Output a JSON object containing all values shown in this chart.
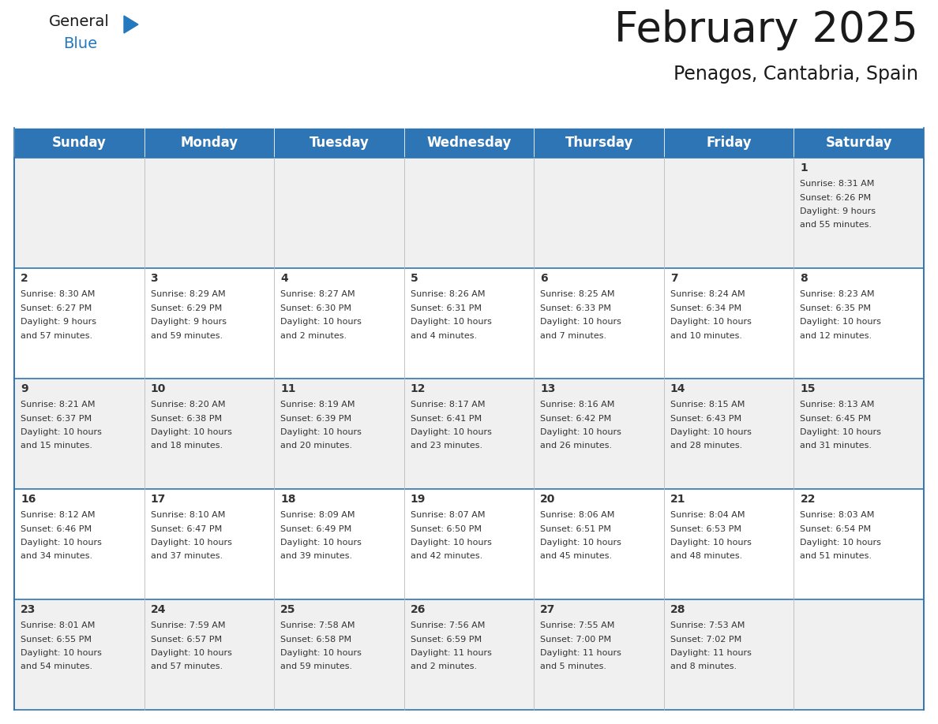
{
  "title": "February 2025",
  "subtitle": "Penagos, Cantabria, Spain",
  "header_color": "#2e75b6",
  "header_text_color": "#ffffff",
  "cell_bg_white": "#ffffff",
  "cell_bg_gray": "#f0f0f0",
  "border_color": "#2e75b6",
  "text_color": "#333333",
  "day_headers": [
    "Sunday",
    "Monday",
    "Tuesday",
    "Wednesday",
    "Thursday",
    "Friday",
    "Saturday"
  ],
  "title_fontsize": 38,
  "subtitle_fontsize": 17,
  "header_fontsize": 12,
  "day_num_fontsize": 10,
  "cell_fontsize": 8,
  "logo_color1": "#1a1a1a",
  "logo_color2": "#2479be",
  "logo_tri_color": "#2479be",
  "logo_dark_tri_color": "#1a5a8a",
  "weeks": [
    [
      {
        "day": null,
        "lines": []
      },
      {
        "day": null,
        "lines": []
      },
      {
        "day": null,
        "lines": []
      },
      {
        "day": null,
        "lines": []
      },
      {
        "day": null,
        "lines": []
      },
      {
        "day": null,
        "lines": []
      },
      {
        "day": 1,
        "lines": [
          "Sunrise: 8:31 AM",
          "Sunset: 6:26 PM",
          "Daylight: 9 hours",
          "and 55 minutes."
        ]
      }
    ],
    [
      {
        "day": 2,
        "lines": [
          "Sunrise: 8:30 AM",
          "Sunset: 6:27 PM",
          "Daylight: 9 hours",
          "and 57 minutes."
        ]
      },
      {
        "day": 3,
        "lines": [
          "Sunrise: 8:29 AM",
          "Sunset: 6:29 PM",
          "Daylight: 9 hours",
          "and 59 minutes."
        ]
      },
      {
        "day": 4,
        "lines": [
          "Sunrise: 8:27 AM",
          "Sunset: 6:30 PM",
          "Daylight: 10 hours",
          "and 2 minutes."
        ]
      },
      {
        "day": 5,
        "lines": [
          "Sunrise: 8:26 AM",
          "Sunset: 6:31 PM",
          "Daylight: 10 hours",
          "and 4 minutes."
        ]
      },
      {
        "day": 6,
        "lines": [
          "Sunrise: 8:25 AM",
          "Sunset: 6:33 PM",
          "Daylight: 10 hours",
          "and 7 minutes."
        ]
      },
      {
        "day": 7,
        "lines": [
          "Sunrise: 8:24 AM",
          "Sunset: 6:34 PM",
          "Daylight: 10 hours",
          "and 10 minutes."
        ]
      },
      {
        "day": 8,
        "lines": [
          "Sunrise: 8:23 AM",
          "Sunset: 6:35 PM",
          "Daylight: 10 hours",
          "and 12 minutes."
        ]
      }
    ],
    [
      {
        "day": 9,
        "lines": [
          "Sunrise: 8:21 AM",
          "Sunset: 6:37 PM",
          "Daylight: 10 hours",
          "and 15 minutes."
        ]
      },
      {
        "day": 10,
        "lines": [
          "Sunrise: 8:20 AM",
          "Sunset: 6:38 PM",
          "Daylight: 10 hours",
          "and 18 minutes."
        ]
      },
      {
        "day": 11,
        "lines": [
          "Sunrise: 8:19 AM",
          "Sunset: 6:39 PM",
          "Daylight: 10 hours",
          "and 20 minutes."
        ]
      },
      {
        "day": 12,
        "lines": [
          "Sunrise: 8:17 AM",
          "Sunset: 6:41 PM",
          "Daylight: 10 hours",
          "and 23 minutes."
        ]
      },
      {
        "day": 13,
        "lines": [
          "Sunrise: 8:16 AM",
          "Sunset: 6:42 PM",
          "Daylight: 10 hours",
          "and 26 minutes."
        ]
      },
      {
        "day": 14,
        "lines": [
          "Sunrise: 8:15 AM",
          "Sunset: 6:43 PM",
          "Daylight: 10 hours",
          "and 28 minutes."
        ]
      },
      {
        "day": 15,
        "lines": [
          "Sunrise: 8:13 AM",
          "Sunset: 6:45 PM",
          "Daylight: 10 hours",
          "and 31 minutes."
        ]
      }
    ],
    [
      {
        "day": 16,
        "lines": [
          "Sunrise: 8:12 AM",
          "Sunset: 6:46 PM",
          "Daylight: 10 hours",
          "and 34 minutes."
        ]
      },
      {
        "day": 17,
        "lines": [
          "Sunrise: 8:10 AM",
          "Sunset: 6:47 PM",
          "Daylight: 10 hours",
          "and 37 minutes."
        ]
      },
      {
        "day": 18,
        "lines": [
          "Sunrise: 8:09 AM",
          "Sunset: 6:49 PM",
          "Daylight: 10 hours",
          "and 39 minutes."
        ]
      },
      {
        "day": 19,
        "lines": [
          "Sunrise: 8:07 AM",
          "Sunset: 6:50 PM",
          "Daylight: 10 hours",
          "and 42 minutes."
        ]
      },
      {
        "day": 20,
        "lines": [
          "Sunrise: 8:06 AM",
          "Sunset: 6:51 PM",
          "Daylight: 10 hours",
          "and 45 minutes."
        ]
      },
      {
        "day": 21,
        "lines": [
          "Sunrise: 8:04 AM",
          "Sunset: 6:53 PM",
          "Daylight: 10 hours",
          "and 48 minutes."
        ]
      },
      {
        "day": 22,
        "lines": [
          "Sunrise: 8:03 AM",
          "Sunset: 6:54 PM",
          "Daylight: 10 hours",
          "and 51 minutes."
        ]
      }
    ],
    [
      {
        "day": 23,
        "lines": [
          "Sunrise: 8:01 AM",
          "Sunset: 6:55 PM",
          "Daylight: 10 hours",
          "and 54 minutes."
        ]
      },
      {
        "day": 24,
        "lines": [
          "Sunrise: 7:59 AM",
          "Sunset: 6:57 PM",
          "Daylight: 10 hours",
          "and 57 minutes."
        ]
      },
      {
        "day": 25,
        "lines": [
          "Sunrise: 7:58 AM",
          "Sunset: 6:58 PM",
          "Daylight: 10 hours",
          "and 59 minutes."
        ]
      },
      {
        "day": 26,
        "lines": [
          "Sunrise: 7:56 AM",
          "Sunset: 6:59 PM",
          "Daylight: 11 hours",
          "and 2 minutes."
        ]
      },
      {
        "day": 27,
        "lines": [
          "Sunrise: 7:55 AM",
          "Sunset: 7:00 PM",
          "Daylight: 11 hours",
          "and 5 minutes."
        ]
      },
      {
        "day": 28,
        "lines": [
          "Sunrise: 7:53 AM",
          "Sunset: 7:02 PM",
          "Daylight: 11 hours",
          "and 8 minutes."
        ]
      },
      {
        "day": null,
        "lines": []
      }
    ]
  ],
  "fig_width": 11.88,
  "fig_height": 9.18,
  "fig_dpi": 100
}
